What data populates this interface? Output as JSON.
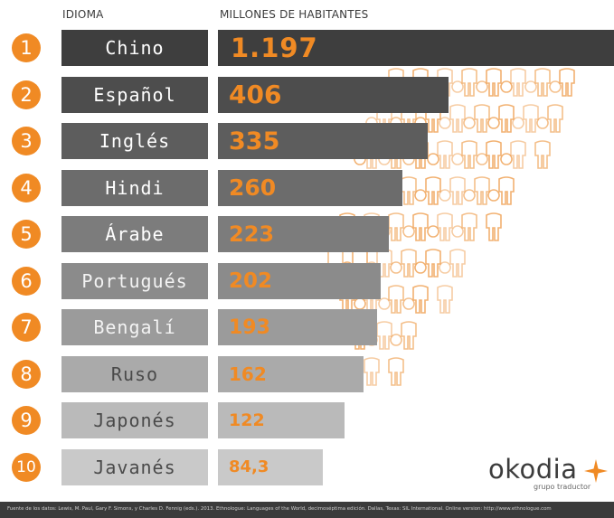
{
  "headers": {
    "language": "IDIOMA",
    "population": "MILLONES DE HABITANTES"
  },
  "chart_data": {
    "type": "bar",
    "categories": [
      "Chino",
      "Español",
      "Inglés",
      "Hindi",
      "Árabe",
      "Portugués",
      "Bengalí",
      "Ruso",
      "Japonés",
      "Javanés"
    ],
    "values": [
      1197,
      406,
      335,
      260,
      223,
      202,
      193,
      162,
      122,
      84.3
    ],
    "value_labels": [
      "1.197",
      "406",
      "335",
      "260",
      "223",
      "202",
      "193",
      "162",
      "122",
      "84,3"
    ],
    "ranks": [
      "1",
      "2",
      "3",
      "4",
      "5",
      "6",
      "7",
      "8",
      "9",
      "10"
    ],
    "xlabel": "IDIOMA",
    "ylabel": "MILLONES DE HABITANTES"
  },
  "logo": {
    "name": "okodia",
    "tagline": "grupo traductor"
  },
  "footer": {
    "source": "Fuente de los datos: Lewis, M. Paul, Gary F. Simons, y Charles D. Fennig (eds.). 2013. Ethnologue: Languages of the World, decimoséptima edición. Dallas, Texas: SIL International. Online version: http://www.ethnologue.com"
  },
  "colors": {
    "accent": "#f08a24",
    "bar_first": "#3e3e3e",
    "bar_last": "#c9c9c9"
  }
}
